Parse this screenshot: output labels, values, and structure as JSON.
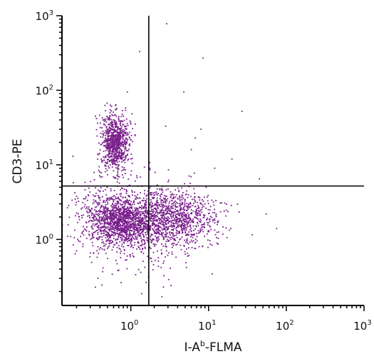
{
  "chart_data": {
    "type": "scatter",
    "title": "",
    "xlabel": {
      "base": "I-A",
      "sup": "b",
      "rest": "-FLMA"
    },
    "ylabel": "CD3-PE",
    "x_scale": "log",
    "y_scale": "log",
    "xlim": [
      0.13,
      1000
    ],
    "ylim": [
      0.13,
      1000
    ],
    "x_ticks": [
      {
        "value": 1,
        "base": "10",
        "exp": "0"
      },
      {
        "value": 10,
        "base": "10",
        "exp": "1"
      },
      {
        "value": 100,
        "base": "10",
        "exp": "2"
      },
      {
        "value": 1000,
        "base": "10",
        "exp": "3"
      }
    ],
    "y_ticks": [
      {
        "value": 1,
        "base": "10",
        "exp": "0"
      },
      {
        "value": 10,
        "base": "10",
        "exp": "1"
      },
      {
        "value": 100,
        "base": "10",
        "exp": "2"
      },
      {
        "value": 1000,
        "base": "10",
        "exp": "3"
      }
    ],
    "gates": {
      "x": 1.7,
      "y": 5.2
    },
    "grid": false,
    "point_color": "#7a1f8c",
    "populations": [
      {
        "x_center": 0.62,
        "y_center": 20,
        "x_spread": 0.09,
        "y_spread": 0.19,
        "count": 850
      },
      {
        "x_center": 0.75,
        "y_center": 1.75,
        "x_spread": 0.22,
        "y_spread": 0.17,
        "count": 1300
      },
      {
        "x_center": 3.5,
        "y_center": 1.9,
        "x_spread": 0.3,
        "y_spread": 0.17,
        "count": 1000
      },
      {
        "x_center": 1.2,
        "y_center": 1.5,
        "x_spread": 0.45,
        "y_spread": 0.38,
        "count": 450
      }
    ],
    "outliers": [
      [
        1.3,
        330
      ],
      [
        0.9,
        95
      ],
      [
        2.9,
        780
      ],
      [
        4.8,
        95
      ],
      [
        27,
        52
      ],
      [
        8.5,
        270
      ],
      [
        6.0,
        16
      ],
      [
        12,
        9
      ],
      [
        45,
        6.5
      ],
      [
        8,
        30
      ],
      [
        20,
        12
      ],
      [
        55,
        2.2
      ],
      [
        75,
        1.4
      ],
      [
        0.35,
        45
      ],
      [
        0.25,
        3.5
      ],
      [
        0.2,
        0.7
      ],
      [
        2.8,
        33
      ],
      [
        0.18,
        13
      ]
    ]
  }
}
